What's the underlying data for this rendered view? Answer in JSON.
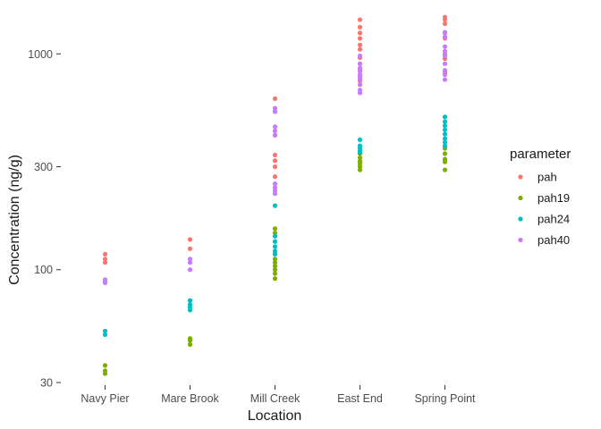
{
  "chart_data": {
    "type": "scatter",
    "xlabel": "Location",
    "ylabel": "Concentration (ng/g)",
    "y_scale": "log10",
    "ylim": [
      30,
      1600
    ],
    "y_ticks": [
      30,
      100,
      300,
      1000
    ],
    "y_tick_labels": [
      "30",
      "100",
      "300",
      "1000"
    ],
    "categories": [
      "Navy Pier",
      "Mare Brook",
      "Mill Creek",
      "East End",
      "Spring Point"
    ],
    "grid": false,
    "legend": {
      "title": "parameter",
      "position": "right"
    },
    "series": [
      {
        "name": "pah",
        "color": "#F8766D",
        "points": [
          [
            "Navy Pier",
            118
          ],
          [
            "Navy Pier",
            112
          ],
          [
            "Navy Pier",
            108
          ],
          [
            "Mare Brook",
            138
          ],
          [
            "Mare Brook",
            125
          ],
          [
            "Mill Creek",
            620
          ],
          [
            "Mill Creek",
            540
          ],
          [
            "Mill Creek",
            420
          ],
          [
            "Mill Creek",
            340
          ],
          [
            "Mill Creek",
            320
          ],
          [
            "Mill Creek",
            300
          ],
          [
            "Mill Creek",
            270
          ],
          [
            "East End",
            1440
          ],
          [
            "East End",
            1330
          ],
          [
            "East End",
            1250
          ],
          [
            "East End",
            1180
          ],
          [
            "East End",
            1100
          ],
          [
            "East End",
            1050
          ],
          [
            "East End",
            960
          ],
          [
            "East End",
            900
          ],
          [
            "East End",
            850
          ],
          [
            "East End",
            800
          ],
          [
            "East End",
            750
          ],
          [
            "Spring Point",
            1480
          ],
          [
            "Spring Point",
            1440
          ],
          [
            "Spring Point",
            1380
          ],
          [
            "Spring Point",
            1250
          ],
          [
            "Spring Point",
            1180
          ],
          [
            "Spring Point",
            1000
          ],
          [
            "Spring Point",
            950
          ],
          [
            "Spring Point",
            820
          ]
        ]
      },
      {
        "name": "pah19",
        "color": "#7CAE00",
        "points": [
          [
            "Navy Pier",
            36
          ],
          [
            "Navy Pier",
            34
          ],
          [
            "Navy Pier",
            33
          ],
          [
            "Mare Brook",
            48
          ],
          [
            "Mare Brook",
            47
          ],
          [
            "Mare Brook",
            45
          ],
          [
            "Mill Creek",
            155
          ],
          [
            "Mill Creek",
            148
          ],
          [
            "Mill Creek",
            118
          ],
          [
            "Mill Creek",
            112
          ],
          [
            "Mill Creek",
            108
          ],
          [
            "Mill Creek",
            104
          ],
          [
            "Mill Creek",
            100
          ],
          [
            "Mill Creek",
            96
          ],
          [
            "Mill Creek",
            91
          ],
          [
            "East End",
            345
          ],
          [
            "East End",
            330
          ],
          [
            "East End",
            318
          ],
          [
            "East End",
            310
          ],
          [
            "East End",
            300
          ],
          [
            "East End",
            290
          ],
          [
            "Spring Point",
            365
          ],
          [
            "Spring Point",
            345
          ],
          [
            "Spring Point",
            325
          ],
          [
            "Spring Point",
            316
          ],
          [
            "Spring Point",
            290
          ]
        ]
      },
      {
        "name": "pah24",
        "color": "#00BFC4",
        "points": [
          [
            "Navy Pier",
            52
          ],
          [
            "Navy Pier",
            50
          ],
          [
            "Mare Brook",
            72
          ],
          [
            "Mare Brook",
            69
          ],
          [
            "Mare Brook",
            67
          ],
          [
            "Mare Brook",
            65
          ],
          [
            "Mill Creek",
            198
          ],
          [
            "Mill Creek",
            143
          ],
          [
            "Mill Creek",
            135
          ],
          [
            "Mill Creek",
            128
          ],
          [
            "Mill Creek",
            122
          ],
          [
            "Mill Creek",
            118
          ],
          [
            "East End",
            400
          ],
          [
            "East End",
            375
          ],
          [
            "East End",
            365
          ],
          [
            "East End",
            355
          ],
          [
            "East End",
            350
          ],
          [
            "Spring Point",
            510
          ],
          [
            "Spring Point",
            485
          ],
          [
            "Spring Point",
            465
          ],
          [
            "Spring Point",
            445
          ],
          [
            "Spring Point",
            425
          ],
          [
            "Spring Point",
            405
          ],
          [
            "Spring Point",
            390
          ],
          [
            "Spring Point",
            375
          ]
        ]
      },
      {
        "name": "pah40",
        "color": "#C77CFF",
        "points": [
          [
            "Navy Pier",
            90
          ],
          [
            "Navy Pier",
            88
          ],
          [
            "Navy Pier",
            87
          ],
          [
            "Mare Brook",
            112
          ],
          [
            "Mare Brook",
            108
          ],
          [
            "Mare Brook",
            100
          ],
          [
            "Mill Creek",
            560
          ],
          [
            "Mill Creek",
            540
          ],
          [
            "Mill Creek",
            460
          ],
          [
            "Mill Creek",
            440
          ],
          [
            "Mill Creek",
            420
          ],
          [
            "Mill Creek",
            250
          ],
          [
            "Mill Creek",
            240
          ],
          [
            "Mill Creek",
            232
          ],
          [
            "Mill Creek",
            225
          ],
          [
            "East End",
            980
          ],
          [
            "East End",
            900
          ],
          [
            "East End",
            860
          ],
          [
            "East End",
            830
          ],
          [
            "East End",
            800
          ],
          [
            "East End",
            780
          ],
          [
            "East End",
            760
          ],
          [
            "East End",
            720
          ],
          [
            "East End",
            680
          ],
          [
            "East End",
            660
          ],
          [
            "Spring Point",
            1260
          ],
          [
            "Spring Point",
            1200
          ],
          [
            "Spring Point",
            1080
          ],
          [
            "Spring Point",
            1030
          ],
          [
            "Spring Point",
            980
          ],
          [
            "Spring Point",
            900
          ],
          [
            "Spring Point",
            840
          ],
          [
            "Spring Point",
            800
          ],
          [
            "Spring Point",
            760
          ]
        ]
      }
    ]
  }
}
